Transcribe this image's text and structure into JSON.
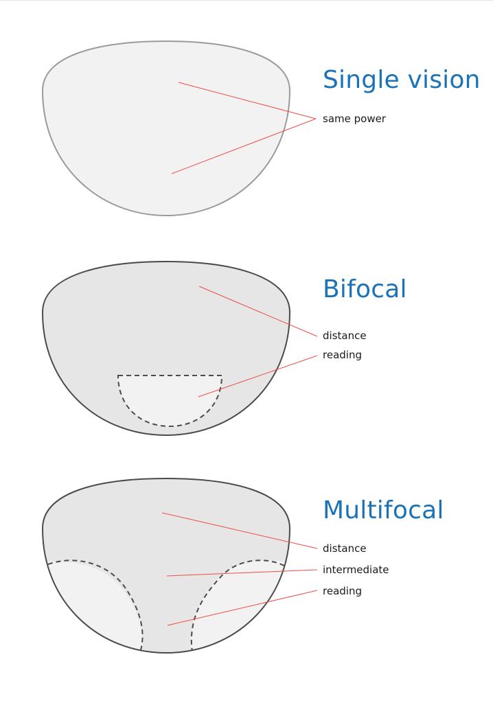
{
  "colors": {
    "title": "#1a73b8",
    "leader_line": "#ef4a4a",
    "lens_outline_light": "#9a9a9a",
    "lens_outline_dark": "#4a4a4a",
    "lens_fill_light": "#f2f2f2",
    "lens_fill_dark": "#e6e6e6",
    "label_text": "#1a1a1a"
  },
  "lenses": [
    {
      "title": "Single vision",
      "labels": [
        "same power"
      ]
    },
    {
      "title": "Bifocal",
      "labels": [
        "distance",
        "reading"
      ]
    },
    {
      "title": "Multifocal",
      "labels": [
        "distance",
        "intermediate",
        "reading"
      ]
    }
  ]
}
